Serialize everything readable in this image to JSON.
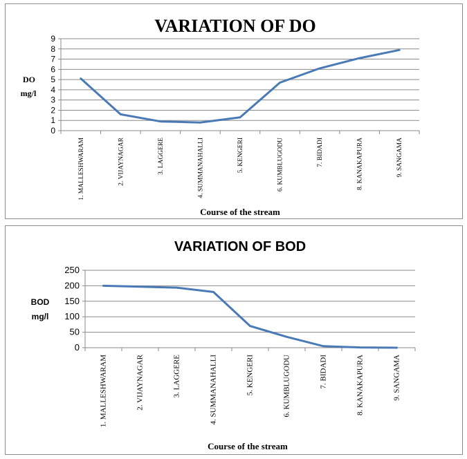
{
  "chart_data": [
    {
      "type": "line",
      "title": "VARIATION OF DO",
      "ylabel_line1": "DO",
      "ylabel_line2": "mg/l",
      "xlabel": "Course of the stream",
      "categories": [
        "1. MALLESHWARAM",
        "2. VIJAYNAGAR",
        "3. LAGGERE",
        "4. SUMMANAHALLI",
        "5. KENGERI",
        "6. KUMBLUGODU",
        "7. BIDADI",
        "8. KANAKAPURA",
        "9. SANGAMA"
      ],
      "values": [
        5.1,
        1.6,
        0.9,
        0.8,
        1.3,
        4.7,
        6.1,
        7.1,
        7.9
      ],
      "ylim": [
        0,
        9
      ],
      "yticks": [
        0,
        1,
        2,
        3,
        4,
        5,
        6,
        7,
        8,
        9
      ],
      "color": "#4a7ab5"
    },
    {
      "type": "line",
      "title": "VARIATION OF BOD",
      "ylabel_line1": "BOD",
      "ylabel_line2": "mg/l",
      "xlabel": "Course of the stream",
      "categories": [
        "1. MALLESHWARAM",
        "2. VIJAYNAGAR",
        "3. LAGGERE",
        "4. SUMMANAHALLI",
        "5. KENGERI",
        "6. KUMBLUGODU",
        "7. BIDADI",
        "8. KANAKAPURA",
        "9. SANGAMA"
      ],
      "values": [
        200,
        197,
        194,
        180,
        70,
        35,
        5,
        1,
        0
      ],
      "ylim": [
        0,
        250
      ],
      "yticks": [
        0,
        50,
        100,
        150,
        200,
        250
      ],
      "color": "#4a7ab5"
    }
  ]
}
